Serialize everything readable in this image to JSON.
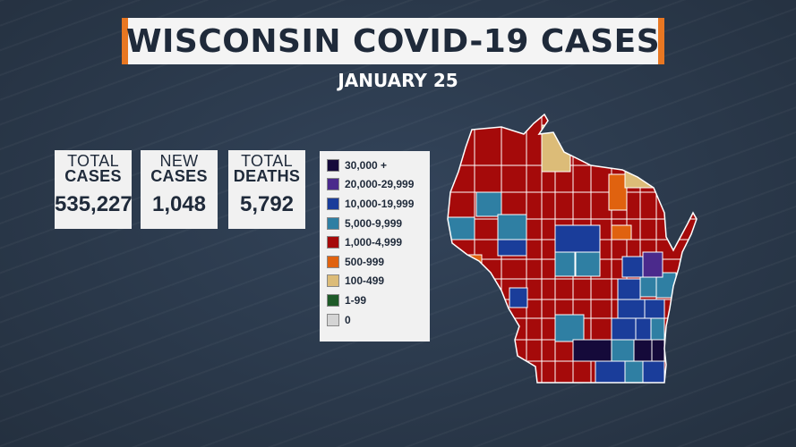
{
  "title": "WISCONSIN COVID-19 CASES",
  "date": "JANUARY 25",
  "stats": [
    {
      "line1": "TOTAL",
      "line2": "CASES",
      "value": "535,227"
    },
    {
      "line1": "NEW",
      "line2": "CASES",
      "value": "1,048"
    },
    {
      "line1": "TOTAL",
      "line2": "DEATHS",
      "value": "5,792"
    }
  ],
  "legend": [
    {
      "label": "30,000 +",
      "color": "#150a3a"
    },
    {
      "label": "20,000-29,999",
      "color": "#4b2a8c"
    },
    {
      "label": "10,000-19,999",
      "color": "#1a3d9a"
    },
    {
      "label": "5,000-9,999",
      "color": "#2f7fa3"
    },
    {
      "label": "1,000-4,999",
      "color": "#a50a0a"
    },
    {
      "label": "500-999",
      "color": "#e0620f"
    },
    {
      "label": "100-499",
      "color": "#dcbc78"
    },
    {
      "label": "1-99",
      "color": "#1e5a28"
    },
    {
      "label": "0",
      "color": "#d4d4d4"
    }
  ],
  "map": {
    "base_color": "#a50a0a",
    "border_color": "#ffffff"
  }
}
